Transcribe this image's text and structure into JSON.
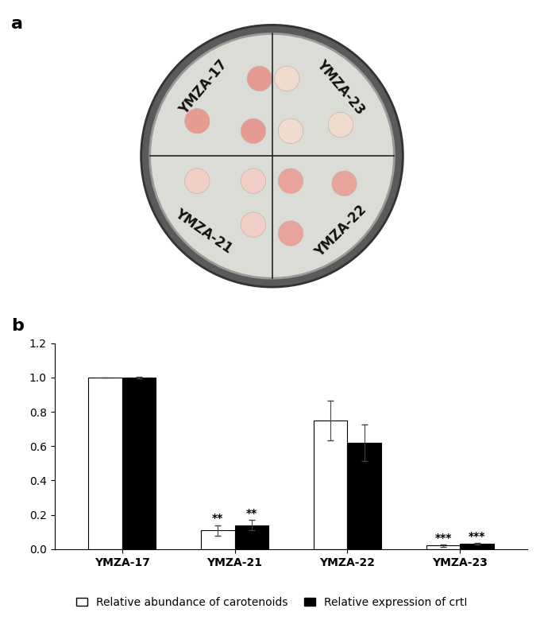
{
  "panel_labels": [
    "a",
    "b"
  ],
  "dish": {
    "labels": [
      "YMZA-17",
      "YMZA-23",
      "YMZA-21",
      "YMZA-22"
    ]
  },
  "chart_data": {
    "type": "bar",
    "categories": [
      "YMZA-17",
      "YMZA-21",
      "YMZA-22",
      "YMZA-23"
    ],
    "series": [
      {
        "name": "Relative abundance of carotenoids",
        "color": "#ffffff",
        "values": [
          1.0,
          0.11,
          0.75,
          0.02
        ],
        "errors": [
          0.0,
          0.03,
          0.115,
          0.005
        ],
        "significance": [
          null,
          "**",
          null,
          "***"
        ]
      },
      {
        "name": "Relative expression of crtI",
        "color": "#000000",
        "values": [
          1.0,
          0.14,
          0.62,
          0.03
        ],
        "errors": [
          0.005,
          0.03,
          0.105,
          0.005
        ],
        "significance": [
          null,
          "**",
          null,
          "***"
        ]
      }
    ],
    "ylim": [
      0.0,
      1.2
    ],
    "yticks": [
      0.0,
      0.2,
      0.4,
      0.6,
      0.8,
      1.0,
      1.2
    ],
    "legend": "lower center",
    "grid": false
  }
}
